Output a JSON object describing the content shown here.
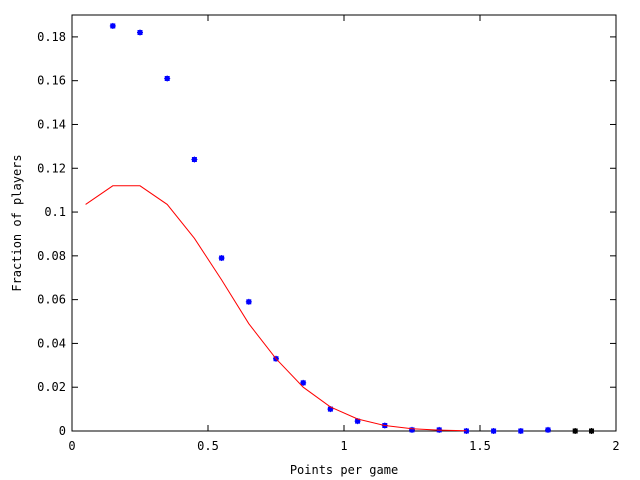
{
  "chart_data": {
    "type": "scatter",
    "title": "",
    "xlabel": "Points per game",
    "ylabel": "Fraction of players",
    "xlim": [
      0,
      2
    ],
    "ylim": [
      0,
      0.19
    ],
    "x_ticks": [
      0,
      0.5,
      1,
      1.5,
      2
    ],
    "x_tick_labels": [
      "0",
      "0.5",
      "1",
      "1.5",
      "2"
    ],
    "y_ticks": [
      0,
      0.02,
      0.04,
      0.06,
      0.08,
      0.1,
      0.12,
      0.14,
      0.16,
      0.18
    ],
    "y_tick_labels": [
      "0",
      "0.02",
      "0.04",
      "0.06",
      "0.08",
      "0.1",
      "0.12",
      "0.14",
      "0.16",
      "0.18"
    ],
    "grid": false,
    "legend": "none",
    "series": [
      {
        "type": "scatter",
        "color": "#0000ff",
        "points": [
          {
            "x": 0.15,
            "y": 0.185
          },
          {
            "x": 0.25,
            "y": 0.182
          },
          {
            "x": 0.35,
            "y": 0.161
          },
          {
            "x": 0.45,
            "y": 0.124
          },
          {
            "x": 0.55,
            "y": 0.079
          },
          {
            "x": 0.65,
            "y": 0.059
          },
          {
            "x": 0.75,
            "y": 0.033
          },
          {
            "x": 0.85,
            "y": 0.022
          },
          {
            "x": 0.95,
            "y": 0.01
          },
          {
            "x": 1.05,
            "y": 0.0045
          },
          {
            "x": 1.15,
            "y": 0.0025
          },
          {
            "x": 1.25,
            "y": 0.0005
          },
          {
            "x": 1.35,
            "y": 0.0005
          },
          {
            "x": 1.45,
            "y": 0.0
          },
          {
            "x": 1.55,
            "y": 0.0
          },
          {
            "x": 1.65,
            "y": 0.0
          },
          {
            "x": 1.75,
            "y": 0.0005
          }
        ]
      },
      {
        "type": "scatter",
        "color": "#000000",
        "points": [
          {
            "x": 1.85,
            "y": 0.0
          },
          {
            "x": 1.91,
            "y": 0.0
          }
        ]
      },
      {
        "type": "line",
        "color": "#ff0000",
        "points": [
          {
            "x": 0.05,
            "y": 0.1035
          },
          {
            "x": 0.15,
            "y": 0.112
          },
          {
            "x": 0.25,
            "y": 0.112
          },
          {
            "x": 0.35,
            "y": 0.1035
          },
          {
            "x": 0.45,
            "y": 0.088
          },
          {
            "x": 0.55,
            "y": 0.069
          },
          {
            "x": 0.65,
            "y": 0.049
          },
          {
            "x": 0.75,
            "y": 0.033
          },
          {
            "x": 0.85,
            "y": 0.02
          },
          {
            "x": 0.95,
            "y": 0.011
          },
          {
            "x": 1.05,
            "y": 0.0055
          },
          {
            "x": 1.15,
            "y": 0.0025
          },
          {
            "x": 1.25,
            "y": 0.001
          },
          {
            "x": 1.35,
            "y": 0.0004
          },
          {
            "x": 1.45,
            "y": 0.0001
          }
        ]
      }
    ]
  }
}
